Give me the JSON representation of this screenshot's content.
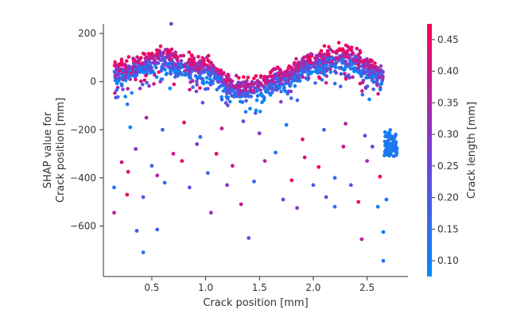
{
  "chart_data": {
    "type": "scatter",
    "title": "",
    "xlabel": "Crack position [mm]",
    "ylabel": [
      "SHAP value for",
      "Crack position [mm]"
    ],
    "xlim": [
      0.05,
      2.88
    ],
    "ylim": [
      -810,
      240
    ],
    "x_ticks": [
      0.5,
      1.0,
      1.5,
      2.0,
      2.5
    ],
    "x_tick_labels": [
      "0.5",
      "1.0",
      "1.5",
      "2.0",
      "2.5"
    ],
    "y_ticks": [
      200,
      0,
      -200,
      -400,
      -600
    ],
    "y_tick_labels": [
      "200",
      "0",
      "−200",
      "−400",
      "−600"
    ],
    "colorbar": {
      "label": "Crack length [mm]",
      "range": [
        0.075,
        0.475
      ],
      "ticks": [
        0.1,
        0.15,
        0.2,
        0.25,
        0.3,
        0.35,
        0.4,
        0.45
      ],
      "tick_labels": [
        "0.10",
        "0.15",
        "0.20",
        "0.25",
        "0.30",
        "0.35",
        "0.40",
        "0.45"
      ],
      "colors": [
        "#008afb",
        "#7a3ed8",
        "#ff0052"
      ]
    },
    "dense_band": {
      "x_range": [
        0.15,
        2.65
      ],
      "center": [
        [
          0.15,
          35
        ],
        [
          0.6,
          90
        ],
        [
          1.0,
          50
        ],
        [
          1.3,
          -40
        ],
        [
          1.45,
          -25
        ],
        [
          1.7,
          10
        ],
        [
          2.0,
          80
        ],
        [
          2.3,
          100
        ],
        [
          2.65,
          30
        ]
      ],
      "spread": 55,
      "count": 1400
    },
    "points": [
      [
        0.68,
        240,
        0.2
      ],
      [
        0.15,
        -545,
        0.38
      ],
      [
        0.15,
        -440,
        0.12
      ],
      [
        0.36,
        -620,
        0.2
      ],
      [
        0.55,
        -615,
        0.18
      ],
      [
        0.42,
        -710,
        0.15
      ],
      [
        1.4,
        -650,
        0.25
      ],
      [
        2.45,
        -655,
        0.35
      ],
      [
        2.65,
        -625,
        0.12
      ],
      [
        2.65,
        -745,
        0.12
      ],
      [
        0.22,
        -335,
        0.4
      ],
      [
        0.28,
        -375,
        0.42
      ],
      [
        0.35,
        -280,
        0.3
      ],
      [
        0.42,
        -480,
        0.25
      ],
      [
        0.5,
        -350,
        0.2
      ],
      [
        0.55,
        -390,
        0.35
      ],
      [
        0.62,
        -420,
        0.15
      ],
      [
        0.7,
        -300,
        0.4
      ],
      [
        0.78,
        -330,
        0.45
      ],
      [
        0.85,
        -440,
        0.22
      ],
      [
        0.92,
        -260,
        0.3
      ],
      [
        1.02,
        -380,
        0.18
      ],
      [
        1.1,
        -300,
        0.44
      ],
      [
        1.2,
        -430,
        0.28
      ],
      [
        1.25,
        -350,
        0.4
      ],
      [
        1.33,
        -510,
        0.38
      ],
      [
        1.45,
        -415,
        0.16
      ],
      [
        1.55,
        -330,
        0.36
      ],
      [
        1.65,
        -295,
        0.13
      ],
      [
        1.72,
        -490,
        0.25
      ],
      [
        1.8,
        -410,
        0.45
      ],
      [
        1.85,
        -525,
        0.3
      ],
      [
        1.92,
        -315,
        0.41
      ],
      [
        2.0,
        -430,
        0.2
      ],
      [
        2.05,
        -355,
        0.43
      ],
      [
        2.12,
        -480,
        0.27
      ],
      [
        2.2,
        -400,
        0.15
      ],
      [
        2.28,
        -270,
        0.39
      ],
      [
        2.35,
        -430,
        0.2
      ],
      [
        2.42,
        -500,
        0.44
      ],
      [
        2.5,
        -330,
        0.33
      ],
      [
        2.55,
        -270,
        0.26
      ],
      [
        2.62,
        -395,
        0.46
      ],
      [
        0.3,
        -190,
        0.1
      ],
      [
        0.45,
        -150,
        0.35
      ],
      [
        0.6,
        -200,
        0.2
      ],
      [
        0.8,
        -170,
        0.43
      ],
      [
        0.95,
        -230,
        0.14
      ],
      [
        1.15,
        -195,
        0.38
      ],
      [
        1.35,
        -165,
        0.22
      ],
      [
        1.5,
        -215,
        0.3
      ],
      [
        1.75,
        -180,
        0.12
      ],
      [
        1.9,
        -240,
        0.42
      ],
      [
        2.1,
        -200,
        0.18
      ],
      [
        2.3,
        -175,
        0.36
      ],
      [
        2.48,
        -225,
        0.24
      ],
      [
        2.2,
        -520,
        0.14
      ],
      [
        0.27,
        -470,
        0.44
      ],
      [
        1.05,
        -545,
        0.33
      ],
      [
        2.6,
        -520,
        0.12
      ],
      [
        2.68,
        -490,
        0.12
      ]
    ],
    "cluster": {
      "x_range": [
        2.66,
        2.78
      ],
      "y_range": [
        -310,
        -200
      ],
      "count": 80,
      "color_value": 0.12
    }
  }
}
